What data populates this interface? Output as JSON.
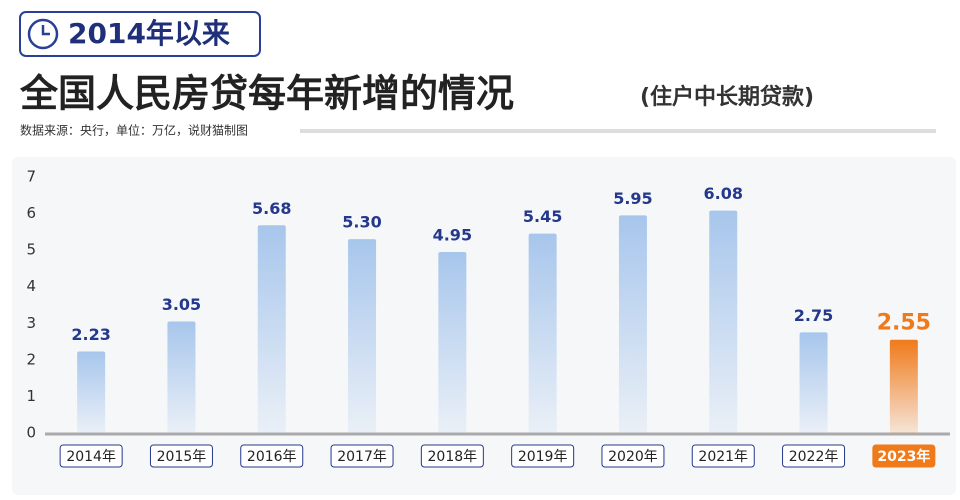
{
  "chart_data": {
    "type": "bar",
    "badge": "2014年以来",
    "title": "全国人民房贷每年新增的情况",
    "subtitle": "(住户中长期贷款)",
    "source": "数据来源：央行，单位：万亿，说财猫制图",
    "categories": [
      "2014年",
      "2015年",
      "2016年",
      "2017年",
      "2018年",
      "2019年",
      "2020年",
      "2021年",
      "2022年",
      "2023年"
    ],
    "values": [
      2.23,
      3.05,
      5.68,
      5.3,
      4.95,
      5.45,
      5.95,
      6.08,
      2.75,
      2.55
    ],
    "value_labels": [
      "2.23",
      "3.05",
      "5.68",
      "5.30",
      "4.95",
      "5.45",
      "5.95",
      "6.08",
      "2.75",
      "2.55"
    ],
    "colors": [
      "#a7c6ec",
      "#a7c6ec",
      "#a7c6ec",
      "#a7c6ec",
      "#a7c6ec",
      "#a7c6ec",
      "#a7c6ec",
      "#a7c6ec",
      "#a7c6ec",
      "#f07a1a"
    ],
    "label_colors": [
      "#24388c",
      "#24388c",
      "#24388c",
      "#24388c",
      "#24388c",
      "#24388c",
      "#24388c",
      "#24388c",
      "#24388c",
      "#f07a1a"
    ],
    "ylim": [
      0,
      7
    ],
    "yticks": [
      0,
      1,
      2,
      3,
      4,
      5,
      6,
      7
    ],
    "grid": false
  }
}
